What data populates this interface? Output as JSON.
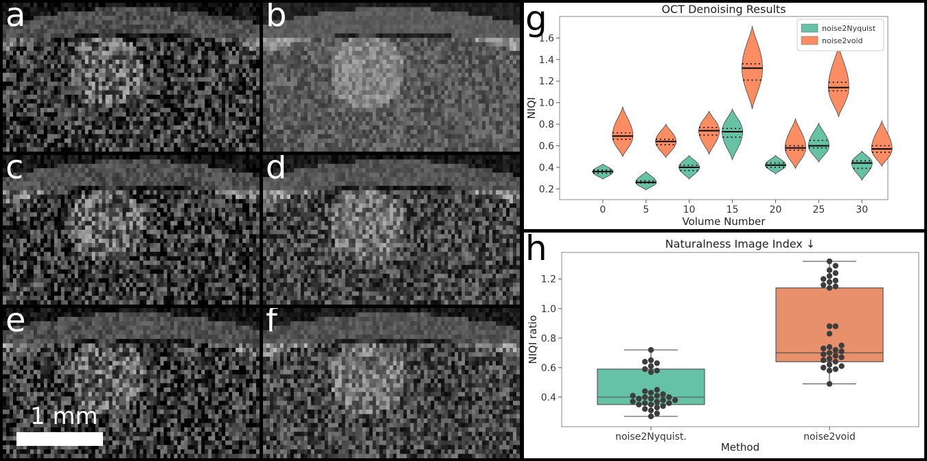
{
  "panels": [
    {
      "letter": "a",
      "tone": "raw"
    },
    {
      "letter": "b",
      "tone": "smooth"
    },
    {
      "letter": "c",
      "tone": "raw"
    },
    {
      "letter": "d",
      "tone": "mid"
    },
    {
      "letter": "e",
      "tone": "raw"
    },
    {
      "letter": "f",
      "tone": "mid"
    }
  ],
  "scalebar": {
    "label": "1 mm"
  },
  "chart_letters": {
    "g": "g",
    "h": "h"
  },
  "chart_data": [
    {
      "type": "violin",
      "title": "OCT Denoising Results",
      "xlabel": "Volume Number",
      "ylabel": "NIQI",
      "ylim": [
        0.1,
        1.8
      ],
      "xticks": [
        "0",
        "5",
        "10",
        "15",
        "20",
        "25",
        "30"
      ],
      "yticks": [
        "0.2",
        "0.4",
        "0.6",
        "0.8",
        "1.0",
        "1.2",
        "1.4",
        "1.6"
      ],
      "legend_position": "top-right",
      "colors": {
        "noise2Nyquist": "#66c2a5",
        "noise2void": "#fc8d62"
      },
      "series": [
        {
          "name": "noise2Nyquist",
          "violins": [
            {
              "x": 0,
              "min": 0.29,
              "max": 0.43,
              "median": 0.36,
              "q1": 0.345,
              "q3": 0.375
            },
            {
              "x": 5,
              "min": 0.19,
              "max": 0.36,
              "median": 0.26,
              "q1": 0.255,
              "q3": 0.275
            },
            {
              "x": 10,
              "min": 0.29,
              "max": 0.51,
              "median": 0.4,
              "q1": 0.37,
              "q3": 0.42
            },
            {
              "x": 15,
              "min": 0.47,
              "max": 0.94,
              "median": 0.73,
              "q1": 0.68,
              "q3": 0.76
            },
            {
              "x": 20,
              "min": 0.34,
              "max": 0.51,
              "median": 0.42,
              "q1": 0.4,
              "q3": 0.44
            },
            {
              "x": 25,
              "min": 0.45,
              "max": 0.81,
              "median": 0.6,
              "q1": 0.58,
              "q3": 0.65
            },
            {
              "x": 30,
              "min": 0.28,
              "max": 0.55,
              "median": 0.44,
              "q1": 0.39,
              "q3": 0.46
            }
          ]
        },
        {
          "name": "noise2void",
          "violins": [
            {
              "x": 0,
              "min": 0.5,
              "max": 0.96,
              "median": 0.69,
              "q1": 0.66,
              "q3": 0.72
            },
            {
              "x": 5,
              "min": 0.49,
              "max": 0.8,
              "median": 0.64,
              "q1": 0.61,
              "q3": 0.66
            },
            {
              "x": 10,
              "min": 0.52,
              "max": 0.92,
              "median": 0.74,
              "q1": 0.7,
              "q3": 0.77
            },
            {
              "x": 15,
              "min": 0.94,
              "max": 1.71,
              "median": 1.32,
              "q1": 1.21,
              "q3": 1.36
            },
            {
              "x": 20,
              "min": 0.39,
              "max": 0.85,
              "median": 0.58,
              "q1": 0.56,
              "q3": 0.6
            },
            {
              "x": 25,
              "min": 0.87,
              "max": 1.53,
              "median": 1.14,
              "q1": 1.11,
              "q3": 1.19
            },
            {
              "x": 30,
              "min": 0.41,
              "max": 0.83,
              "median": 0.57,
              "q1": 0.54,
              "q3": 0.6
            }
          ]
        }
      ]
    },
    {
      "type": "box",
      "title": "Naturalness Image Index ↓",
      "xlabel": "Method",
      "ylabel": "NIQI ratio",
      "ylim": [
        0.2,
        1.38
      ],
      "yticks": [
        "0.4",
        "0.6",
        "0.8",
        "1.0",
        "1.2"
      ],
      "categories": [
        "noise2Nyquist.",
        "noise2void"
      ],
      "colors": {
        "noise2Nyquist.": "#66c2a5",
        "noise2void": "#e8906b"
      },
      "boxes": [
        {
          "category": "noise2Nyquist.",
          "whisker_low": 0.27,
          "q1": 0.35,
          "median": 0.4,
          "q3": 0.59,
          "whisker_high": 0.72,
          "points": [
            0.27,
            0.29,
            0.31,
            0.32,
            0.33,
            0.34,
            0.35,
            0.35,
            0.36,
            0.36,
            0.37,
            0.37,
            0.38,
            0.38,
            0.39,
            0.39,
            0.4,
            0.4,
            0.41,
            0.41,
            0.42,
            0.43,
            0.44,
            0.45,
            0.57,
            0.58,
            0.59,
            0.61,
            0.63,
            0.64,
            0.65,
            0.72
          ]
        },
        {
          "category": "noise2void",
          "whisker_low": 0.49,
          "q1": 0.64,
          "median": 0.7,
          "q3": 1.14,
          "whisker_high": 1.32,
          "points": [
            0.49,
            0.58,
            0.59,
            0.6,
            0.61,
            0.62,
            0.64,
            0.65,
            0.66,
            0.67,
            0.68,
            0.69,
            0.7,
            0.71,
            0.72,
            0.73,
            0.74,
            0.75,
            0.83,
            0.88,
            0.88,
            1.14,
            1.15,
            1.16,
            1.18,
            1.19,
            1.2,
            1.22,
            1.24,
            1.26,
            1.29,
            1.32
          ]
        }
      ]
    }
  ]
}
